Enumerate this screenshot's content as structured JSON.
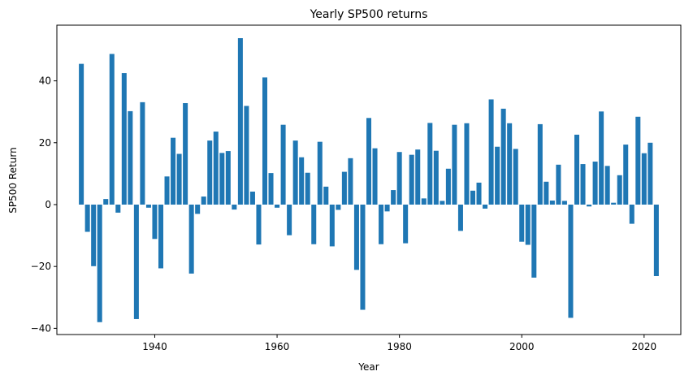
{
  "chart_data": {
    "type": "bar",
    "title": "Yearly SP500 returns",
    "xlabel": "Year",
    "ylabel": "SP500 Return",
    "xlim": [
      1924,
      2026
    ],
    "ylim": [
      -42,
      58
    ],
    "x_ticks": [
      1940,
      1960,
      1980,
      2000,
      2020
    ],
    "y_ticks": [
      -40,
      -20,
      0,
      20,
      40
    ],
    "grid": false,
    "bar_color": "#1f77b4",
    "x": [
      1928,
      1929,
      1930,
      1931,
      1932,
      1933,
      1934,
      1935,
      1936,
      1937,
      1938,
      1939,
      1940,
      1941,
      1942,
      1943,
      1944,
      1945,
      1946,
      1947,
      1948,
      1949,
      1950,
      1951,
      1952,
      1953,
      1954,
      1955,
      1956,
      1957,
      1958,
      1959,
      1960,
      1961,
      1962,
      1963,
      1964,
      1965,
      1966,
      1967,
      1968,
      1969,
      1970,
      1971,
      1972,
      1973,
      1974,
      1975,
      1976,
      1977,
      1978,
      1979,
      1980,
      1981,
      1982,
      1983,
      1984,
      1985,
      1986,
      1987,
      1988,
      1989,
      1990,
      1991,
      1992,
      1993,
      1994,
      1995,
      1996,
      1997,
      1998,
      1999,
      2000,
      2001,
      2002,
      2003,
      2004,
      2005,
      2006,
      2007,
      2008,
      2009,
      2010,
      2011,
      2012,
      2013,
      2014,
      2015,
      2016,
      2017,
      2018,
      2019,
      2020,
      2021,
      2022
    ],
    "values": [
      45.5,
      -8.8,
      -19.9,
      -38.0,
      1.8,
      48.7,
      -2.6,
      42.5,
      30.2,
      -37.0,
      33.1,
      -1.0,
      -11.1,
      -20.6,
      9.1,
      21.6,
      16.4,
      32.8,
      -22.3,
      -3.0,
      2.6,
      20.7,
      23.6,
      16.7,
      17.3,
      -1.6,
      53.8,
      31.9,
      4.2,
      -12.9,
      41.1,
      10.2,
      -1.0,
      25.8,
      -9.9,
      20.7,
      15.3,
      10.3,
      -12.8,
      20.3,
      5.8,
      -13.5,
      -1.7,
      10.6,
      15.0,
      -21.1,
      -34.0,
      28.0,
      18.2,
      -12.8,
      -2.2,
      4.7,
      17.0,
      -12.5,
      16.1,
      17.8,
      2.0,
      26.4,
      17.4,
      1.2,
      11.6,
      25.8,
      -8.5,
      26.3,
      4.5,
      7.1,
      -1.3,
      34.0,
      18.7,
      31.0,
      26.3,
      18.0,
      -12.0,
      -13.0,
      -23.6,
      26.0,
      7.4,
      1.3,
      12.9,
      1.2,
      -36.6,
      22.6,
      13.1,
      -0.6,
      13.9,
      30.1,
      12.5,
      0.6,
      9.5,
      19.4,
      -6.2,
      28.4,
      16.6,
      20.0,
      -23.1
    ]
  }
}
